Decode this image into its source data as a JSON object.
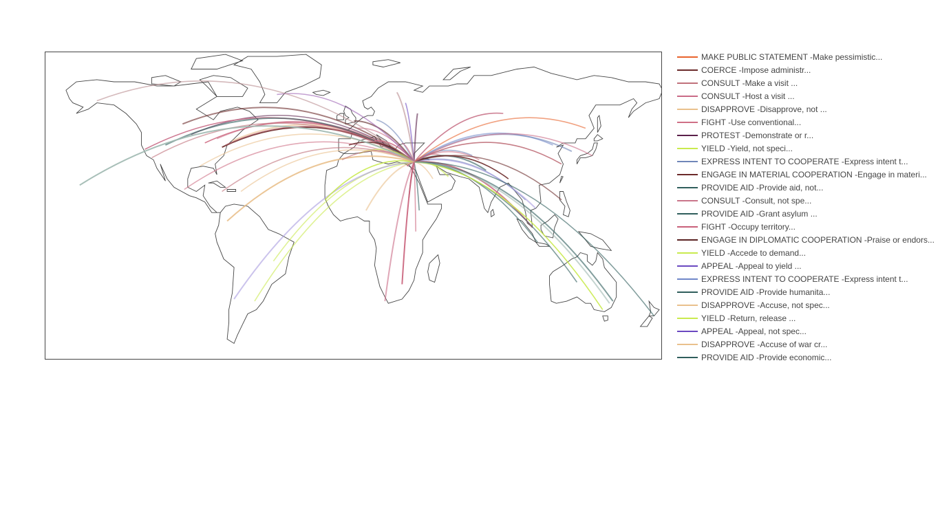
{
  "legend": {
    "items": [
      {
        "label": "MAKE PUBLIC STATEMENT  -Make pessimistic...",
        "color": "#e8622c"
      },
      {
        "label": "COERCE  -Impose administr...",
        "color": "#6b2a2a"
      },
      {
        "label": "CONSULT  -Make a visit  ...",
        "color": "#c0707a"
      },
      {
        "label": "CONSULT  -Host a visit  ...",
        "color": "#c96a86"
      },
      {
        "label": "DISAPPROVE  -Disapprove, not ...",
        "color": "#e9c08c"
      },
      {
        "label": "FIGHT  -Use conventional...",
        "color": "#cf6f85"
      },
      {
        "label": "PROTEST  -Demonstrate or r...",
        "color": "#5a1f4a"
      },
      {
        "label": "YIELD  -Yield, not speci...",
        "color": "#c9ea4e"
      },
      {
        "label": "EXPRESS INTENT TO COOPERATE  -Express intent t...",
        "color": "#6f86b8"
      },
      {
        "label": "ENGAGE IN MATERIAL COOPERATION  -Engage in materi...",
        "color": "#6b2a2a"
      },
      {
        "label": "PROVIDE AID  -Provide aid, not...",
        "color": "#2f5e5c"
      },
      {
        "label": "CONSULT  -Consult, not spe...",
        "color": "#c9748a"
      },
      {
        "label": "PROVIDE AID  -Grant asylum  ...",
        "color": "#2f5e5c"
      },
      {
        "label": "FIGHT  -Occupy territory...",
        "color": "#c9607a"
      },
      {
        "label": "ENGAGE IN DIPLOMATIC COOPERATION  -Praise or endors...",
        "color": "#5a2222"
      },
      {
        "label": "YIELD  -Accede to demand...",
        "color": "#c9ea4e"
      },
      {
        "label": "APPEAL  -Appeal to yield ...",
        "color": "#6a48c0"
      },
      {
        "label": "EXPRESS INTENT TO COOPERATE  -Express intent t...",
        "color": "#6f86c8"
      },
      {
        "label": "PROVIDE AID  -Provide humanita...",
        "color": "#2f5e5c"
      },
      {
        "label": "DISAPPROVE  -Accuse, not spec...",
        "color": "#e9c08c"
      },
      {
        "label": "YIELD  -Return, release ...",
        "color": "#c9ea4e"
      },
      {
        "label": "APPEAL  -Appeal, not spec...",
        "color": "#6a48c0"
      },
      {
        "label": "DISAPPROVE  -Accuse of war cr...",
        "color": "#e9c08c"
      },
      {
        "label": "PROVIDE AID  -Provide economic...",
        "color": "#2f5e5c"
      }
    ]
  },
  "map": {
    "projection": "equirectangular",
    "coastline_color": "#444444",
    "hub": {
      "lon": 35,
      "lat": 32
    },
    "flows": [
      {
        "lon": -77,
        "lat": 39,
        "color": "#6b2a2a"
      },
      {
        "lon": -75,
        "lat": 40,
        "color": "#c0707a"
      },
      {
        "lon": -80,
        "lat": 43,
        "color": "#c96a86"
      },
      {
        "lon": -71,
        "lat": 42,
        "color": "#e9c08c"
      },
      {
        "lon": -87,
        "lat": 41,
        "color": "#cf6f85"
      },
      {
        "lon": -95,
        "lat": 45,
        "color": "#5a1f4a"
      },
      {
        "lon": -100,
        "lat": 50,
        "color": "#6b2a2a"
      },
      {
        "lon": -118,
        "lat": 34,
        "color": "#c0707a"
      },
      {
        "lon": -122,
        "lat": 38,
        "color": "#c96a86"
      },
      {
        "lon": -110,
        "lat": 40,
        "color": "#2f5e5c"
      },
      {
        "lon": -90,
        "lat": 30,
        "color": "#e9c08c"
      },
      {
        "lon": -99,
        "lat": 19,
        "color": "#cf6f85"
      },
      {
        "lon": -74,
        "lat": 4,
        "color": "#e9c08c"
      },
      {
        "lon": -47,
        "lat": -15,
        "color": "#c9ea4e"
      },
      {
        "lon": -58,
        "lat": -34,
        "color": "#c9ea4e"
      },
      {
        "lon": -70,
        "lat": -33,
        "color": "#a99be0"
      },
      {
        "lon": -3,
        "lat": 40,
        "color": "#6b2a2a"
      },
      {
        "lon": 2,
        "lat": 48,
        "color": "#c96a86"
      },
      {
        "lon": -0.1,
        "lat": 51.5,
        "color": "#5a2222"
      },
      {
        "lon": 13,
        "lat": 52,
        "color": "#6f86b8"
      },
      {
        "lon": 12,
        "lat": 42,
        "color": "#cf6f85"
      },
      {
        "lon": 37,
        "lat": 55,
        "color": "#5a1f4a"
      },
      {
        "lon": 30,
        "lat": 60,
        "color": "#6a48c0"
      },
      {
        "lon": 28,
        "lat": 41,
        "color": "#c9607a"
      },
      {
        "lon": 44,
        "lat": 33,
        "color": "#2f5e5c"
      },
      {
        "lon": 51,
        "lat": 35,
        "color": "#c0707a"
      },
      {
        "lon": 46,
        "lat": 24,
        "color": "#e9c08c"
      },
      {
        "lon": 55,
        "lat": 25,
        "color": "#c9ea4e"
      },
      {
        "lon": 31,
        "lat": 30,
        "color": "#c96a86"
      },
      {
        "lon": 32,
        "lat": 15,
        "color": "#6b2a2a"
      },
      {
        "lon": 3,
        "lat": 36,
        "color": "#c9ea4e"
      },
      {
        "lon": -7,
        "lat": 33,
        "color": "#c0707a"
      },
      {
        "lon": -17,
        "lat": 14,
        "color": "#c9ea4e"
      },
      {
        "lon": 7,
        "lat": 9,
        "color": "#e9c08c"
      },
      {
        "lon": 38,
        "lat": 9,
        "color": "#2f5e5c"
      },
      {
        "lon": 36,
        "lat": -1,
        "color": "#c9607a"
      },
      {
        "lon": 28,
        "lat": -26,
        "color": "#c9607a"
      },
      {
        "lon": 69,
        "lat": 35,
        "color": "#6f86b8"
      },
      {
        "lon": 73,
        "lat": 33,
        "color": "#cf6f85"
      },
      {
        "lon": 77,
        "lat": 28,
        "color": "#2f5e5c"
      },
      {
        "lon": 90,
        "lat": 24,
        "color": "#6b2a2a"
      },
      {
        "lon": 100,
        "lat": 14,
        "color": "#6f86b8"
      },
      {
        "lon": 106,
        "lat": 10,
        "color": "#a99be0"
      },
      {
        "lon": 116,
        "lat": 40,
        "color": "#6f86c8"
      },
      {
        "lon": 121,
        "lat": 31,
        "color": "#c0707a"
      },
      {
        "lon": 127,
        "lat": 37,
        "color": "#6f86b8"
      },
      {
        "lon": 139,
        "lat": 35,
        "color": "#c96a86"
      },
      {
        "lon": 121,
        "lat": 14,
        "color": "#6b2a2a"
      },
      {
        "lon": 104,
        "lat": 1,
        "color": "#cf6f85"
      },
      {
        "lon": 107,
        "lat": -6,
        "color": "#2f5e5c"
      },
      {
        "lon": 130,
        "lat": -25,
        "color": "#2f5e5c"
      },
      {
        "lon": 151,
        "lat": -34,
        "color": "#2f5e5c"
      },
      {
        "lon": 145,
        "lat": -38,
        "color": "#c9ea4e"
      },
      {
        "lon": 175,
        "lat": -41,
        "color": "#2f5e5c"
      },
      {
        "lon": 149,
        "lat": -35,
        "color": "#9fb8b0"
      },
      {
        "lon": 135,
        "lat": 48,
        "color": "#e8622c"
      },
      {
        "lon": 87,
        "lat": 55,
        "color": "#c9748a"
      },
      {
        "lon": 25,
        "lat": 65,
        "color": "#b98c90"
      },
      {
        "lon": -45,
        "lat": 64,
        "color": "#9c62b4"
      },
      {
        "lon": -150,
        "lat": 61,
        "color": "#b98c90"
      },
      {
        "lon": -160,
        "lat": 21,
        "color": "#9fb8b0"
      },
      {
        "lon": -77,
        "lat": 18,
        "color": "#c0707a"
      },
      {
        "lon": -66,
        "lat": 18,
        "color": "#e9c08c"
      },
      {
        "lon": 18,
        "lat": -34,
        "color": "#c96a86"
      }
    ]
  }
}
